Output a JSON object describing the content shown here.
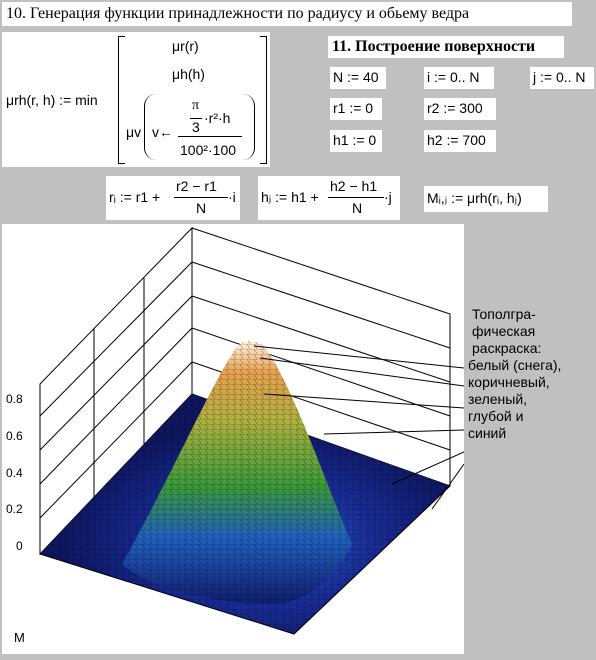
{
  "section10": {
    "title": "10. Генерация функции принадлежности по радиусу и обьему ведра"
  },
  "membership": {
    "lhs": "μrh(r, h) := min",
    "row1": "μr(r)",
    "row2": "μh(h)",
    "row3_prefix": "μv",
    "row3_arrow": "v←",
    "pi": "π",
    "three": "3",
    "r2h": "·r²·h",
    "den": "100²·100"
  },
  "section11": {
    "title": "11. Построение поверхности"
  },
  "defs": {
    "N": "N := 40",
    "i": "i := 0.. N",
    "j": "j := 0.. N",
    "r1": "r1 := 0",
    "r2": "r2 := 300",
    "h1": "h1 := 0",
    "h2": "h2 := 700"
  },
  "formulas": {
    "ri_lhs": "rᵢ := r1 +",
    "ri_num": "r2 − r1",
    "ri_den": "N",
    "ri_tail": "·i",
    "hj_lhs": "hⱼ := h1 +",
    "hj_num": "h2 − h1",
    "hj_den": "N",
    "hj_tail": "·j",
    "M": "Mᵢ,ⱼ := μrh(rᵢ, hⱼ)"
  },
  "chart": {
    "ticks": [
      "0.8",
      "0.6",
      "0.4",
      "0.2",
      "0"
    ],
    "matrix_label": "M",
    "legend": [
      "Тополгра-",
      "фическая",
      "раскраска:",
      "белый (снега),",
      "коричневый,",
      "зеленый,",
      "глубой и",
      "синий"
    ]
  },
  "chart_data": {
    "type": "surface",
    "z_ticks": [
      0.8,
      0.6,
      0.4,
      0.2,
      0
    ],
    "x_label": "",
    "y_label": "",
    "z_label": "",
    "peak_z": 1.0,
    "grid_size": 41
  }
}
